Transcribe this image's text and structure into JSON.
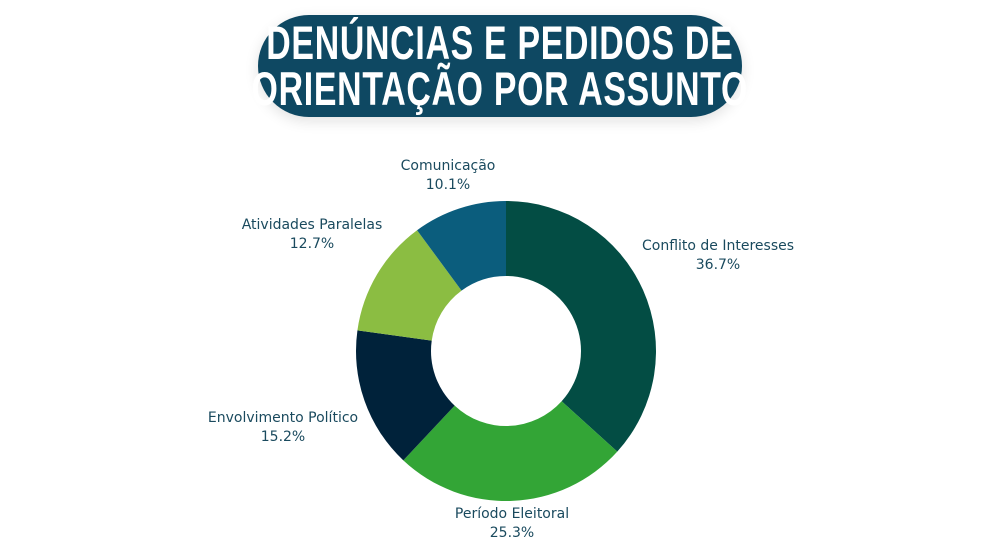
{
  "header": {
    "title_line1": "DENÚNCIAS E PEDIDOS DE",
    "title_line2": "ORIENTAÇÃO POR ASSUNTO"
  },
  "chart_data": {
    "type": "pie",
    "donut": true,
    "title": "DENÚNCIAS E PEDIDOS DE ORIENTAÇÃO POR ASSUNTO",
    "unit": "%",
    "slices": [
      {
        "label": "Conflito de Interesses",
        "value": 36.7,
        "value_label": "36.7%",
        "color": "#034d44"
      },
      {
        "label": "Período Eleitoral",
        "value": 25.3,
        "value_label": "25.3%",
        "color": "#33a536"
      },
      {
        "label": "Envolvimento Político",
        "value": 15.2,
        "value_label": "15.2%",
        "color": "#00223a"
      },
      {
        "label": "Atividades Paralelas",
        "value": 12.7,
        "value_label": "12.7%",
        "color": "#8bbd42"
      },
      {
        "label": "Comunicação",
        "value": 10.1,
        "value_label": "10.1%",
        "color": "#0b5d7d"
      }
    ],
    "start": "top",
    "direction": "clockwise"
  }
}
